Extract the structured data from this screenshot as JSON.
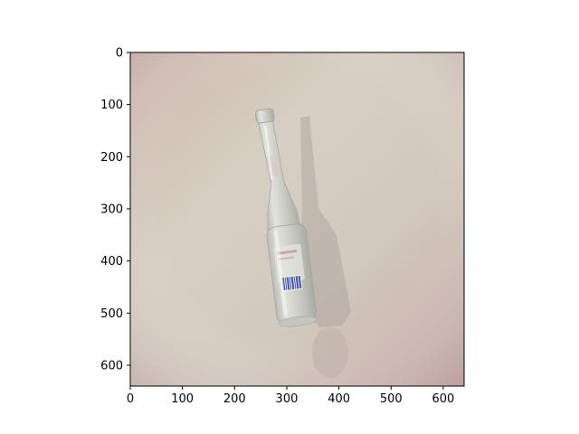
{
  "chart_data": {
    "type": "image",
    "title": "",
    "xlabel": "",
    "ylabel": "",
    "xlim": [
      0,
      640
    ],
    "ylim": [
      640,
      0
    ],
    "x_ticks": [
      0,
      100,
      200,
      300,
      400,
      500,
      600
    ],
    "x_tick_labels": [
      "0",
      "100",
      "200",
      "300",
      "400",
      "500",
      "600"
    ],
    "y_ticks": [
      0,
      100,
      200,
      300,
      400,
      500,
      600
    ],
    "y_tick_labels": [
      "0",
      "100",
      "200",
      "300",
      "400",
      "500",
      "600"
    ],
    "grid": false,
    "image_content": {
      "subject": "empty clear glass bottle lying diagonally on a light surface",
      "background_color": "#c7b8ae",
      "bottle_color": "#d2d3cc",
      "label_accent_color": "#4a5fb8"
    }
  }
}
